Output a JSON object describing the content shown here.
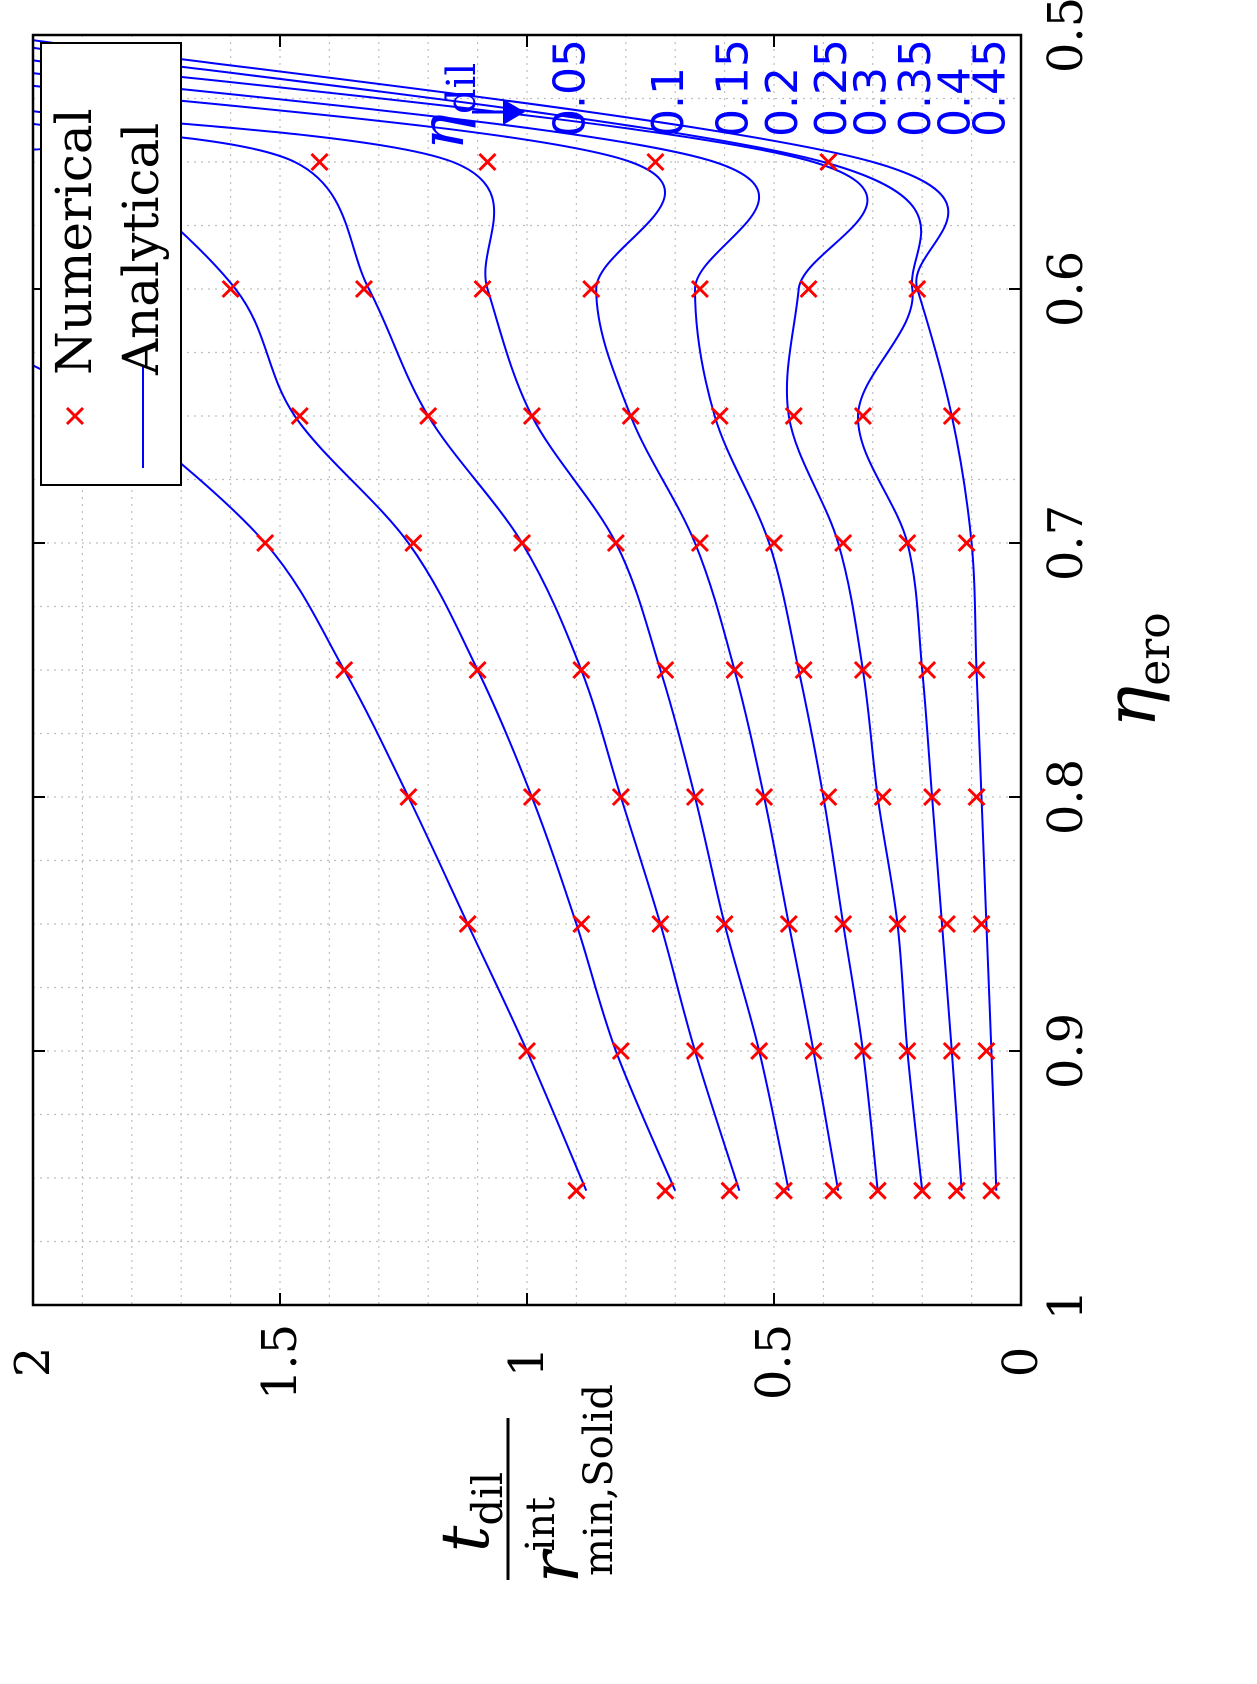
{
  "chart_data": {
    "type": "line",
    "orientation": "rotated 90 degrees counter-clockwise",
    "xlabel": {
      "symbol": "η",
      "subscript": "ero"
    },
    "ylabel": {
      "numerator": "t",
      "numerator_sub": "dil",
      "denominator": "r",
      "denominator_sup": "int",
      "denominator_sub": "min,Solid"
    },
    "xlim": [
      0.5,
      1
    ],
    "ylim": [
      0,
      2
    ],
    "xticks": [
      "0.5",
      "0.6",
      "0.7",
      "0.8",
      "0.9",
      "1"
    ],
    "yticks": [
      "0",
      "0.5",
      "1",
      "1.5",
      "2"
    ],
    "grid": true,
    "legend": {
      "position": "top-left of rotated plot",
      "entries": [
        {
          "label": "Numerical",
          "marker": "x",
          "color": "#ff0000"
        },
        {
          "label": "Analytical",
          "marker": "line",
          "color": "#0000ff"
        }
      ]
    },
    "parameter": {
      "symbol": "η",
      "subscript": "dil",
      "values": [
        "0.05",
        "0.1",
        "0.15",
        "0.2",
        "0.25",
        "0.3",
        "0.35",
        "0.4",
        "0.45"
      ]
    },
    "series": [
      {
        "eta_dil": 0.05,
        "analytical": [
          [
            0.63,
            2.0
          ],
          [
            0.65,
            1.82
          ],
          [
            0.7,
            1.53
          ],
          [
            0.75,
            1.37
          ],
          [
            0.8,
            1.24
          ],
          [
            0.85,
            1.12
          ],
          [
            0.9,
            1.0
          ],
          [
            0.955,
            0.88
          ]
        ],
        "numerical": [
          [
            0.6,
            1.92
          ],
          [
            0.65,
            1.8
          ],
          [
            0.7,
            1.53
          ],
          [
            0.75,
            1.37
          ],
          [
            0.8,
            1.24
          ],
          [
            0.85,
            1.12
          ],
          [
            0.9,
            1.0
          ],
          [
            0.955,
            0.9
          ]
        ]
      },
      {
        "eta_dil": 0.1,
        "analytical": [
          [
            0.545,
            2.0
          ],
          [
            0.55,
            1.87
          ],
          [
            0.6,
            1.59
          ],
          [
            0.65,
            1.47
          ],
          [
            0.7,
            1.24
          ],
          [
            0.75,
            1.1
          ],
          [
            0.8,
            0.99
          ],
          [
            0.85,
            0.9
          ],
          [
            0.9,
            0.82
          ],
          [
            0.955,
            0.7
          ]
        ],
        "numerical": [
          [
            0.55,
            1.75
          ],
          [
            0.6,
            1.6
          ],
          [
            0.65,
            1.46
          ],
          [
            0.7,
            1.23
          ],
          [
            0.75,
            1.1
          ],
          [
            0.8,
            0.99
          ],
          [
            0.85,
            0.89
          ],
          [
            0.9,
            0.81
          ],
          [
            0.955,
            0.72
          ]
        ]
      },
      {
        "eta_dil": 0.15,
        "analytical": [
          [
            0.535,
            2.0
          ],
          [
            0.55,
            1.47
          ],
          [
            0.6,
            1.32
          ],
          [
            0.65,
            1.2
          ],
          [
            0.7,
            1.01
          ],
          [
            0.75,
            0.89
          ],
          [
            0.8,
            0.81
          ],
          [
            0.85,
            0.73
          ],
          [
            0.9,
            0.66
          ],
          [
            0.955,
            0.57
          ]
        ],
        "numerical": [
          [
            0.55,
            1.42
          ],
          [
            0.6,
            1.33
          ],
          [
            0.65,
            1.2
          ],
          [
            0.7,
            1.01
          ],
          [
            0.75,
            0.89
          ],
          [
            0.8,
            0.81
          ],
          [
            0.85,
            0.73
          ],
          [
            0.9,
            0.66
          ],
          [
            0.955,
            0.59
          ]
        ]
      },
      {
        "eta_dil": 0.2,
        "analytical": [
          [
            0.53,
            2.0
          ],
          [
            0.55,
            1.15
          ],
          [
            0.6,
            1.08
          ],
          [
            0.65,
            0.99
          ],
          [
            0.7,
            0.82
          ],
          [
            0.75,
            0.73
          ],
          [
            0.8,
            0.66
          ],
          [
            0.85,
            0.6
          ],
          [
            0.9,
            0.53
          ],
          [
            0.955,
            0.47
          ]
        ],
        "numerical": [
          [
            0.55,
            1.08
          ],
          [
            0.6,
            1.09
          ],
          [
            0.65,
            0.99
          ],
          [
            0.7,
            0.82
          ],
          [
            0.75,
            0.72
          ],
          [
            0.8,
            0.66
          ],
          [
            0.85,
            0.6
          ],
          [
            0.9,
            0.53
          ],
          [
            0.955,
            0.48
          ]
        ]
      },
      {
        "eta_dil": 0.25,
        "analytical": [
          [
            0.52,
            2.0
          ],
          [
            0.55,
            0.79
          ],
          [
            0.6,
            0.86
          ],
          [
            0.65,
            0.79
          ],
          [
            0.7,
            0.66
          ],
          [
            0.75,
            0.58
          ],
          [
            0.8,
            0.52
          ],
          [
            0.85,
            0.47
          ],
          [
            0.9,
            0.42
          ],
          [
            0.955,
            0.37
          ]
        ],
        "numerical": [
          [
            0.55,
            0.74
          ],
          [
            0.6,
            0.87
          ],
          [
            0.65,
            0.79
          ],
          [
            0.7,
            0.65
          ],
          [
            0.75,
            0.58
          ],
          [
            0.8,
            0.52
          ],
          [
            0.85,
            0.47
          ],
          [
            0.9,
            0.42
          ],
          [
            0.955,
            0.38
          ]
        ]
      },
      {
        "eta_dil": 0.3,
        "analytical": [
          [
            0.515,
            2.0
          ],
          [
            0.55,
            0.62
          ],
          [
            0.6,
            0.66
          ],
          [
            0.65,
            0.62
          ],
          [
            0.7,
            0.51
          ],
          [
            0.75,
            0.45
          ],
          [
            0.8,
            0.4
          ],
          [
            0.85,
            0.36
          ],
          [
            0.9,
            0.32
          ],
          [
            0.955,
            0.29
          ]
        ],
        "numerical": [
          [
            0.6,
            0.65
          ],
          [
            0.65,
            0.61
          ],
          [
            0.7,
            0.5
          ],
          [
            0.75,
            0.44
          ],
          [
            0.8,
            0.39
          ],
          [
            0.85,
            0.36
          ],
          [
            0.9,
            0.32
          ],
          [
            0.955,
            0.29
          ]
        ]
      },
      {
        "eta_dil": 0.35,
        "analytical": [
          [
            0.51,
            2.0
          ],
          [
            0.55,
            0.42
          ],
          [
            0.6,
            0.45
          ],
          [
            0.65,
            0.47
          ],
          [
            0.7,
            0.37
          ],
          [
            0.75,
            0.32
          ],
          [
            0.8,
            0.29
          ],
          [
            0.85,
            0.25
          ],
          [
            0.9,
            0.23
          ],
          [
            0.955,
            0.2
          ]
        ],
        "numerical": [
          [
            0.6,
            0.43
          ],
          [
            0.65,
            0.46
          ],
          [
            0.7,
            0.36
          ],
          [
            0.75,
            0.32
          ],
          [
            0.8,
            0.28
          ],
          [
            0.85,
            0.25
          ],
          [
            0.9,
            0.23
          ],
          [
            0.955,
            0.2
          ]
        ]
      },
      {
        "eta_dil": 0.4,
        "analytical": [
          [
            0.505,
            2.0
          ],
          [
            0.55,
            0.4
          ],
          [
            0.6,
            0.22
          ],
          [
            0.65,
            0.33
          ],
          [
            0.7,
            0.23
          ],
          [
            0.75,
            0.2
          ],
          [
            0.8,
            0.18
          ],
          [
            0.85,
            0.16
          ],
          [
            0.9,
            0.14
          ],
          [
            0.955,
            0.12
          ]
        ],
        "numerical": [
          [
            0.55,
            0.39
          ],
          [
            0.65,
            0.32
          ],
          [
            0.7,
            0.23
          ],
          [
            0.75,
            0.19
          ],
          [
            0.8,
            0.18
          ],
          [
            0.85,
            0.15
          ],
          [
            0.9,
            0.14
          ],
          [
            0.955,
            0.13
          ]
        ]
      },
      {
        "eta_dil": 0.45,
        "analytical": [
          [
            0.502,
            2.0
          ],
          [
            0.55,
            0.3
          ],
          [
            0.6,
            0.21
          ],
          [
            0.65,
            0.14
          ],
          [
            0.7,
            0.1
          ],
          [
            0.75,
            0.09
          ],
          [
            0.8,
            0.08
          ],
          [
            0.85,
            0.07
          ],
          [
            0.9,
            0.06
          ],
          [
            0.955,
            0.05
          ]
        ],
        "numerical": [
          [
            0.6,
            0.21
          ],
          [
            0.65,
            0.14
          ],
          [
            0.7,
            0.11
          ],
          [
            0.75,
            0.09
          ],
          [
            0.8,
            0.09
          ],
          [
            0.85,
            0.08
          ],
          [
            0.9,
            0.07
          ],
          [
            0.955,
            0.06
          ]
        ]
      }
    ]
  }
}
